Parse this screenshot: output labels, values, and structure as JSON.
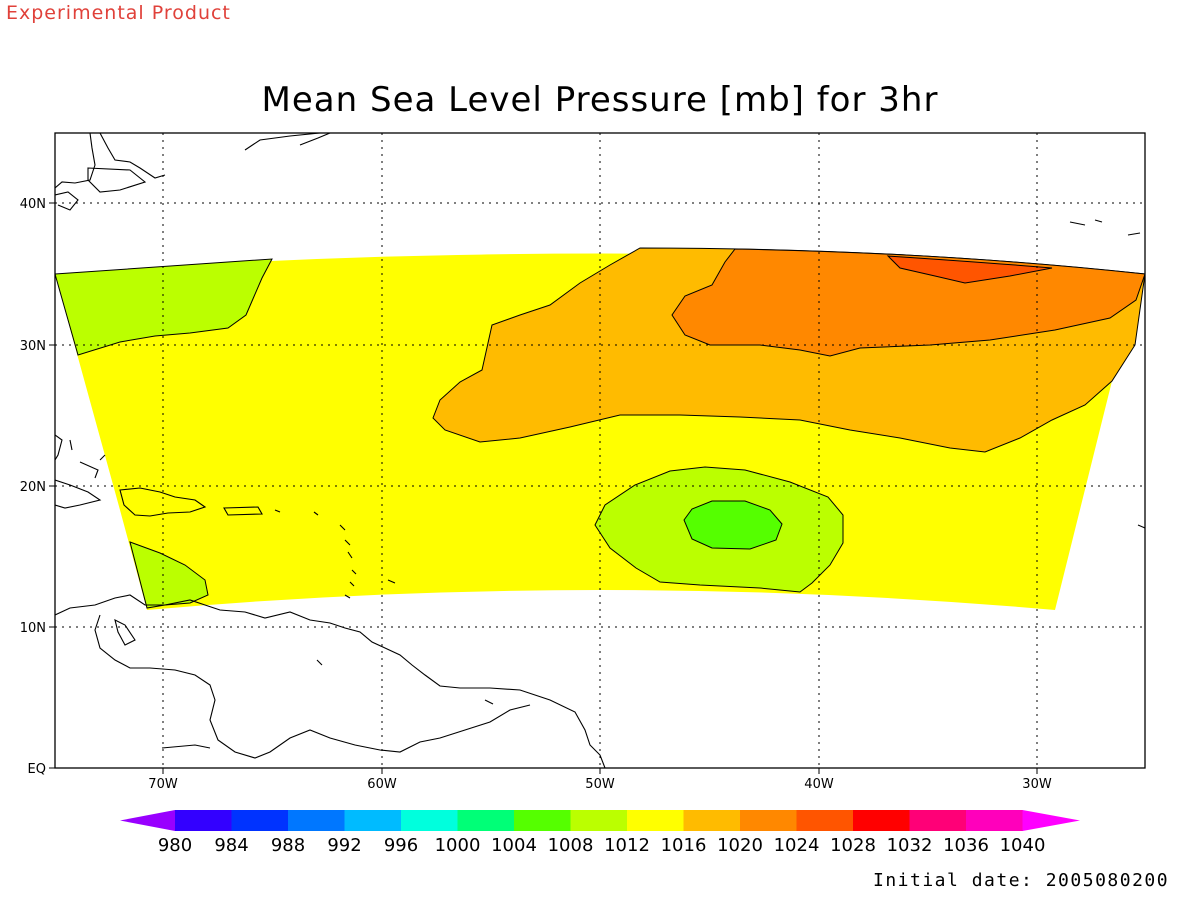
{
  "header": {
    "experimental_label": "Experimental Product",
    "title": "Mean Sea Level Pressure [mb] for 3hr"
  },
  "map": {
    "lat_labels": [
      "40N",
      "30N",
      "20N",
      "10N",
      "EQ"
    ],
    "lon_labels": [
      "70W",
      "60W",
      "50W",
      "40W",
      "30W"
    ],
    "regions": [
      {
        "value_range": "1012-1016",
        "color": "#ffff00",
        "description": "background field"
      },
      {
        "value_range": "1008-1012",
        "color": "#bbff00"
      },
      {
        "value_range": "1004-1008",
        "color": "#55ff00"
      },
      {
        "value_range": "1016-1020",
        "color": "#ffbb00"
      },
      {
        "value_range": "1020-1024",
        "color": "#ff8800"
      },
      {
        "value_range": "1024-1028",
        "color": "#ff5500"
      }
    ]
  },
  "colorbar": {
    "labels": [
      "980",
      "984",
      "988",
      "992",
      "996",
      "1000",
      "1004",
      "1008",
      "1012",
      "1016",
      "1020",
      "1024",
      "1028",
      "1032",
      "1036",
      "1040"
    ],
    "colors": [
      "#9900ff",
      "#3300ff",
      "#0033ff",
      "#0077ff",
      "#00bbff",
      "#00ffdd",
      "#00ff77",
      "#55ff00",
      "#bbff00",
      "#ffff00",
      "#ffbb00",
      "#ff8800",
      "#ff5500",
      "#ff0000",
      "#ff0077",
      "#ff00bb",
      "#ff00ff"
    ]
  },
  "footer": {
    "initial_date": "Initial date: 2005080200"
  }
}
